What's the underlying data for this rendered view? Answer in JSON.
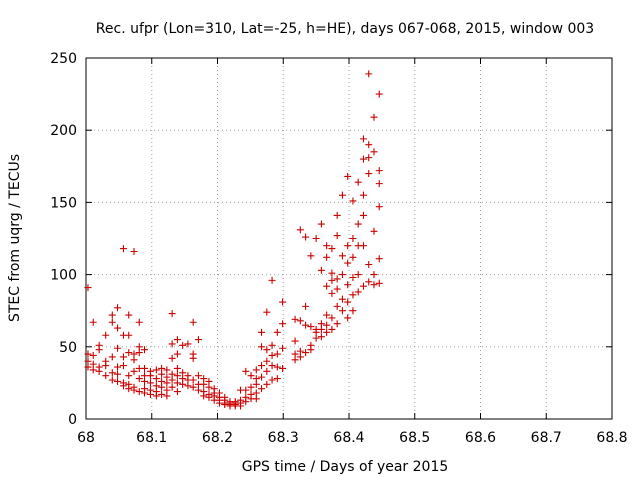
{
  "chart_data": {
    "type": "scatter",
    "title": "Rec. ufpr (Lon=310, Lat=-25, h=HE), days 067-068, 2015, window 003",
    "xlabel": "GPS time / Days of year 2015",
    "ylabel": "STEC from uqrg / TECUs",
    "xlim": [
      68.0,
      68.8
    ],
    "ylim": [
      0,
      250
    ],
    "xticks": [
      "68",
      "68.1",
      "68.2",
      "68.3",
      "68.4",
      "68.5",
      "68.6",
      "68.7",
      "68.8"
    ],
    "yticks": [
      "0",
      "50",
      "100",
      "150",
      "200",
      "250"
    ],
    "grid": true,
    "marker": "+",
    "color": "#cc0000",
    "series": [
      {
        "name": "STEC",
        "points": [
          [
            68.003,
            91
          ],
          [
            68.003,
            45
          ],
          [
            68.003,
            40
          ],
          [
            68.003,
            36
          ],
          [
            68.011,
            67
          ],
          [
            68.011,
            44
          ],
          [
            68.011,
            38
          ],
          [
            68.011,
            34
          ],
          [
            68.02,
            51
          ],
          [
            68.02,
            48
          ],
          [
            68.02,
            36
          ],
          [
            68.02,
            33
          ],
          [
            68.03,
            58
          ],
          [
            68.03,
            40
          ],
          [
            68.03,
            37
          ],
          [
            68.03,
            30
          ],
          [
            68.04,
            72
          ],
          [
            68.04,
            67
          ],
          [
            68.04,
            43
          ],
          [
            68.04,
            32
          ],
          [
            68.04,
            27
          ],
          [
            68.048,
            77
          ],
          [
            68.048,
            63
          ],
          [
            68.048,
            49
          ],
          [
            68.048,
            36
          ],
          [
            68.048,
            31
          ],
          [
            68.048,
            26
          ],
          [
            68.057,
            118
          ],
          [
            68.057,
            58
          ],
          [
            68.057,
            43
          ],
          [
            68.057,
            37
          ],
          [
            68.057,
            25
          ],
          [
            68.057,
            23
          ],
          [
            68.065,
            72
          ],
          [
            68.065,
            58
          ],
          [
            68.065,
            46
          ],
          [
            68.065,
            30
          ],
          [
            68.065,
            24
          ],
          [
            68.065,
            21
          ],
          [
            68.073,
            116
          ],
          [
            68.073,
            45
          ],
          [
            68.073,
            41
          ],
          [
            68.073,
            33
          ],
          [
            68.073,
            22
          ],
          [
            68.073,
            20
          ],
          [
            68.081,
            67
          ],
          [
            68.081,
            50
          ],
          [
            68.081,
            46
          ],
          [
            68.081,
            35
          ],
          [
            68.081,
            28
          ],
          [
            68.081,
            19
          ],
          [
            68.089,
            48
          ],
          [
            68.089,
            35
          ],
          [
            68.089,
            30
          ],
          [
            68.089,
            26
          ],
          [
            68.089,
            21
          ],
          [
            68.089,
            18
          ],
          [
            68.098,
            33
          ],
          [
            68.098,
            30
          ],
          [
            68.098,
            25
          ],
          [
            68.098,
            20
          ],
          [
            68.098,
            17
          ],
          [
            68.107,
            34
          ],
          [
            68.107,
            28
          ],
          [
            68.107,
            23
          ],
          [
            68.107,
            19
          ],
          [
            68.107,
            16
          ],
          [
            68.115,
            35
          ],
          [
            68.115,
            31
          ],
          [
            68.115,
            26
          ],
          [
            68.115,
            22
          ],
          [
            68.115,
            17
          ],
          [
            68.123,
            34
          ],
          [
            68.123,
            29
          ],
          [
            68.123,
            25
          ],
          [
            68.123,
            20
          ],
          [
            68.123,
            16
          ],
          [
            68.131,
            73
          ],
          [
            68.131,
            52
          ],
          [
            68.131,
            42
          ],
          [
            68.131,
            31
          ],
          [
            68.131,
            27
          ],
          [
            68.131,
            22
          ],
          [
            68.139,
            55
          ],
          [
            68.139,
            45
          ],
          [
            68.139,
            35
          ],
          [
            68.139,
            30
          ],
          [
            68.139,
            25
          ],
          [
            68.139,
            19
          ],
          [
            68.147,
            51
          ],
          [
            68.147,
            32
          ],
          [
            68.147,
            28
          ],
          [
            68.147,
            24
          ],
          [
            68.155,
            52
          ],
          [
            68.155,
            30
          ],
          [
            68.155,
            27
          ],
          [
            68.155,
            23
          ],
          [
            68.163,
            67
          ],
          [
            68.163,
            45
          ],
          [
            68.163,
            42
          ],
          [
            68.163,
            27
          ],
          [
            68.163,
            22
          ],
          [
            68.171,
            55
          ],
          [
            68.171,
            30
          ],
          [
            68.171,
            24
          ],
          [
            68.171,
            20
          ],
          [
            68.179,
            28
          ],
          [
            68.179,
            24
          ],
          [
            68.179,
            19
          ],
          [
            68.179,
            16
          ],
          [
            68.187,
            26
          ],
          [
            68.187,
            22
          ],
          [
            68.187,
            17
          ],
          [
            68.187,
            15
          ],
          [
            68.195,
            21
          ],
          [
            68.195,
            18
          ],
          [
            68.195,
            16
          ],
          [
            68.195,
            13
          ],
          [
            68.203,
            18
          ],
          [
            68.203,
            15
          ],
          [
            68.203,
            13
          ],
          [
            68.203,
            11
          ],
          [
            68.211,
            15
          ],
          [
            68.211,
            13
          ],
          [
            68.211,
            11
          ],
          [
            68.211,
            10
          ],
          [
            68.219,
            12
          ],
          [
            68.219,
            11
          ],
          [
            68.219,
            10
          ],
          [
            68.219,
            9
          ],
          [
            68.227,
            12
          ],
          [
            68.227,
            11
          ],
          [
            68.227,
            10
          ],
          [
            68.227,
            9
          ],
          [
            68.235,
            20
          ],
          [
            68.235,
            13
          ],
          [
            68.235,
            11
          ],
          [
            68.235,
            9
          ],
          [
            68.243,
            33
          ],
          [
            68.243,
            20
          ],
          [
            68.243,
            15
          ],
          [
            68.243,
            12
          ],
          [
            68.251,
            30
          ],
          [
            68.251,
            22
          ],
          [
            68.251,
            17
          ],
          [
            68.251,
            14
          ],
          [
            68.259,
            34
          ],
          [
            68.259,
            28
          ],
          [
            68.259,
            24
          ],
          [
            68.259,
            18
          ],
          [
            68.259,
            14
          ],
          [
            68.267,
            60
          ],
          [
            68.267,
            50
          ],
          [
            68.267,
            37
          ],
          [
            68.267,
            29
          ],
          [
            68.267,
            21
          ],
          [
            68.275,
            74
          ],
          [
            68.275,
            48
          ],
          [
            68.275,
            40
          ],
          [
            68.275,
            33
          ],
          [
            68.275,
            24
          ],
          [
            68.283,
            96
          ],
          [
            68.283,
            51
          ],
          [
            68.283,
            44
          ],
          [
            68.283,
            37
          ],
          [
            68.283,
            27
          ],
          [
            68.291,
            60
          ],
          [
            68.291,
            45
          ],
          [
            68.291,
            36
          ],
          [
            68.291,
            28
          ],
          [
            68.299,
            81
          ],
          [
            68.299,
            66
          ],
          [
            68.299,
            49
          ],
          [
            68.299,
            35
          ],
          [
            68.318,
            69
          ],
          [
            68.318,
            54
          ],
          [
            68.318,
            45
          ],
          [
            68.318,
            41
          ],
          [
            68.326,
            131
          ],
          [
            68.326,
            68
          ],
          [
            68.326,
            47
          ],
          [
            68.326,
            43
          ],
          [
            68.334,
            126
          ],
          [
            68.334,
            78
          ],
          [
            68.334,
            65
          ],
          [
            68.334,
            46
          ],
          [
            68.342,
            113
          ],
          [
            68.342,
            64
          ],
          [
            68.342,
            51
          ],
          [
            68.342,
            48
          ],
          [
            68.35,
            125
          ],
          [
            68.35,
            62
          ],
          [
            68.35,
            60
          ],
          [
            68.35,
            56
          ],
          [
            68.358,
            135
          ],
          [
            68.358,
            103
          ],
          [
            68.358,
            66
          ],
          [
            68.358,
            62
          ],
          [
            68.358,
            57
          ],
          [
            68.366,
            120
          ],
          [
            68.366,
            112
          ],
          [
            68.366,
            92
          ],
          [
            68.366,
            72
          ],
          [
            68.366,
            65
          ],
          [
            68.366,
            60
          ],
          [
            68.374,
            118
          ],
          [
            68.374,
            101
          ],
          [
            68.374,
            96
          ],
          [
            68.374,
            87
          ],
          [
            68.374,
            70
          ],
          [
            68.374,
            62
          ],
          [
            68.382,
            141
          ],
          [
            68.382,
            127
          ],
          [
            68.382,
            97
          ],
          [
            68.382,
            90
          ],
          [
            68.382,
            78
          ],
          [
            68.382,
            66
          ],
          [
            68.39,
            155
          ],
          [
            68.39,
            113
          ],
          [
            68.39,
            100
          ],
          [
            68.39,
            83
          ],
          [
            68.39,
            75
          ],
          [
            68.398,
            168
          ],
          [
            68.398,
            120
          ],
          [
            68.398,
            108
          ],
          [
            68.398,
            93
          ],
          [
            68.398,
            81
          ],
          [
            68.398,
            70
          ],
          [
            68.406,
            151
          ],
          [
            68.406,
            125
          ],
          [
            68.406,
            112
          ],
          [
            68.406,
            98
          ],
          [
            68.406,
            86
          ],
          [
            68.406,
            75
          ],
          [
            68.414,
            164
          ],
          [
            68.414,
            135
          ],
          [
            68.414,
            120
          ],
          [
            68.414,
            100
          ],
          [
            68.414,
            88
          ],
          [
            68.422,
            194
          ],
          [
            68.422,
            180
          ],
          [
            68.422,
            155
          ],
          [
            68.422,
            141
          ],
          [
            68.422,
            120
          ],
          [
            68.422,
            92
          ],
          [
            68.43,
            239
          ],
          [
            68.43,
            190
          ],
          [
            68.43,
            181
          ],
          [
            68.43,
            170
          ],
          [
            68.43,
            107
          ],
          [
            68.43,
            95
          ],
          [
            68.438,
            209
          ],
          [
            68.438,
            185
          ],
          [
            68.438,
            130
          ],
          [
            68.438,
            100
          ],
          [
            68.438,
            93
          ],
          [
            68.446,
            225
          ],
          [
            68.446,
            172
          ],
          [
            68.446,
            163
          ],
          [
            68.446,
            147
          ],
          [
            68.446,
            111
          ],
          [
            68.446,
            94
          ]
        ]
      }
    ]
  }
}
